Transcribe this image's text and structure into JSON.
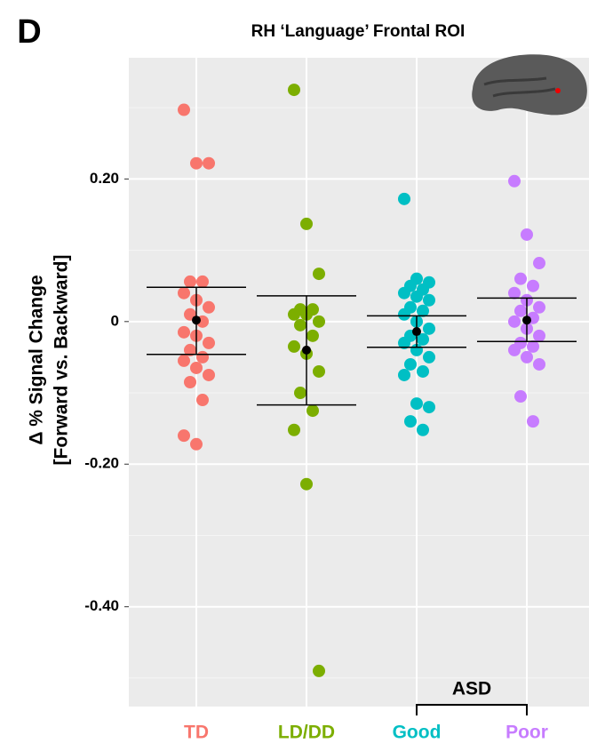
{
  "chart_data": {
    "type": "strip",
    "panel_label": "D",
    "title": "RH ‘Language’ Frontal ROI",
    "ylabel": [
      "Δ % Signal Change",
      "[Forward vs. Backward]"
    ],
    "ylim": [
      -0.54,
      0.37
    ],
    "yticks": [
      {
        "value": 0.2,
        "label": "0.20"
      },
      0,
      {
        "value": -0.2,
        "label": "-0.20"
      },
      {
        "value": -0.4,
        "label": "-0.40"
      }
    ],
    "minor_yticks": [
      0.3,
      0.1,
      -0.1,
      -0.3,
      -0.5
    ],
    "grid": true,
    "group_label": "ASD",
    "series": [
      {
        "name": "TD",
        "color": "#F8766D",
        "values": [
          0.297,
          0.222,
          0.222,
          0.056,
          0.056,
          0.04,
          0.03,
          0.02,
          0.01,
          0.0,
          -0.015,
          -0.02,
          -0.03,
          -0.04,
          -0.05,
          -0.055,
          -0.065,
          -0.075,
          -0.085,
          -0.11,
          -0.16,
          -0.172
        ],
        "mean": 0.002,
        "lower": -0.046,
        "upper": 0.048
      },
      {
        "name": "LD/DD",
        "color": "#7CAE00",
        "values": [
          0.325,
          0.137,
          0.067,
          0.017,
          0.017,
          0.01,
          0.01,
          0.0,
          -0.005,
          -0.02,
          -0.035,
          -0.045,
          -0.07,
          -0.1,
          -0.125,
          -0.152,
          -0.228,
          -0.49
        ],
        "mean": -0.04,
        "lower": -0.117,
        "upper": 0.036
      },
      {
        "name": "Good",
        "color": "#00BFC4",
        "values": [
          0.172,
          0.06,
          0.055,
          0.05,
          0.045,
          0.04,
          0.035,
          0.03,
          0.02,
          0.015,
          0.01,
          0.0,
          -0.01,
          -0.02,
          -0.025,
          -0.03,
          -0.04,
          -0.05,
          -0.06,
          -0.07,
          -0.075,
          -0.115,
          -0.12,
          -0.14,
          -0.152
        ],
        "mean": -0.014,
        "lower": -0.036,
        "upper": 0.008
      },
      {
        "name": "Poor",
        "color": "#C77CFF",
        "values": [
          0.197,
          0.122,
          0.082,
          0.06,
          0.05,
          0.04,
          0.03,
          0.02,
          0.015,
          0.005,
          0.0,
          -0.01,
          -0.02,
          -0.03,
          -0.035,
          -0.04,
          -0.05,
          -0.06,
          -0.105,
          -0.14
        ],
        "mean": 0.002,
        "lower": -0.028,
        "upper": 0.033
      }
    ]
  }
}
